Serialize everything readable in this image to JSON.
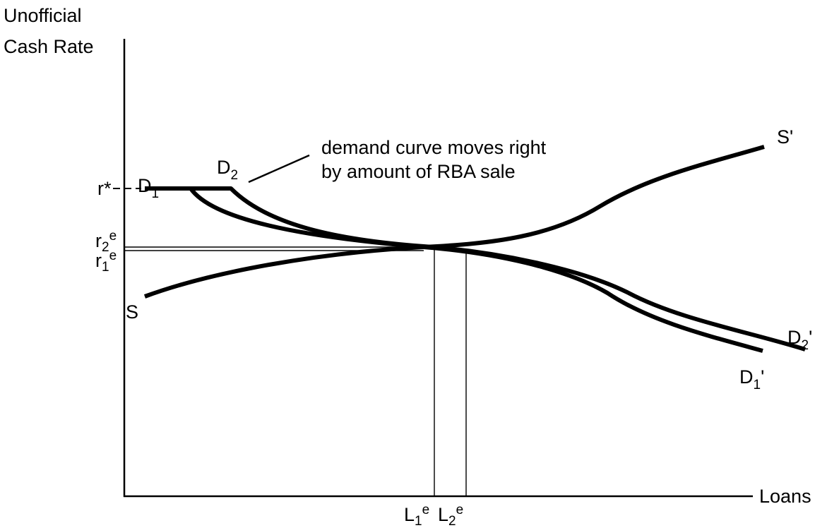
{
  "axes": {
    "y_label": [
      "Unofficial",
      "Cash Rate"
    ],
    "x_label": "Loans"
  },
  "annotation": [
    "demand curve moves right",
    "by amount of RBA sale"
  ],
  "labels": {
    "r_star": "r*",
    "r2e": {
      "base": "r",
      "sub": "2",
      "sup": "e"
    },
    "r1e": {
      "base": "r",
      "sub": "1",
      "sup": "e"
    },
    "D1": {
      "base": "D",
      "sub": "1"
    },
    "D2": {
      "base": "D",
      "sub": "2"
    },
    "S": "S",
    "S_prime": "S'",
    "D2_prime": {
      "base": "D",
      "sub": "2",
      "suffix": "'"
    },
    "D1_prime": {
      "base": "D",
      "sub": "1",
      "suffix": "'"
    },
    "L1e": {
      "base": "L",
      "sub": "1",
      "sup": "e"
    },
    "L2e": {
      "base": "L",
      "sub": "2",
      "sup": "e"
    }
  }
}
